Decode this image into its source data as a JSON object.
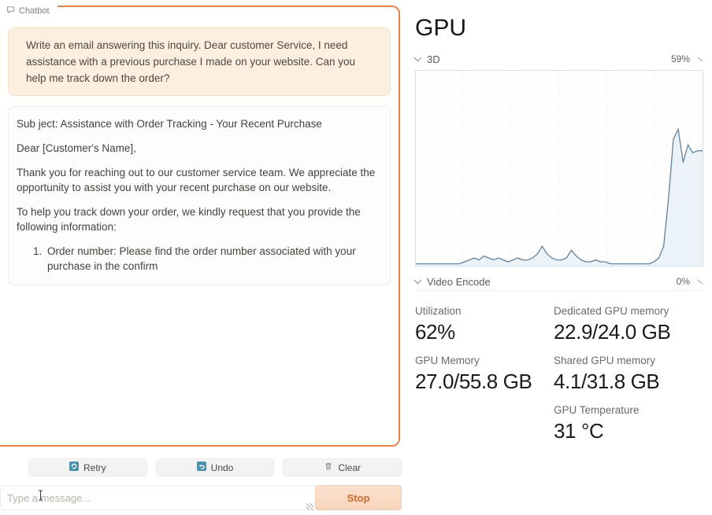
{
  "colors": {
    "accent_orange": "#e2824a",
    "action_icon_blue": "#4a90ad",
    "stop_bg": "#f8d5bd",
    "stop_text": "#d06a33",
    "chart_line": "#64829b",
    "chart_fill": "#dde9f4"
  },
  "chat": {
    "label": "Chatbot",
    "user_message": "Write an email answering this inquiry. Dear customer Service, I need assistance with a previous purchase I made on your website. Can you help me track down the order?",
    "bot_message": {
      "paragraphs": [
        "Sub ject: Assistance with Order Tracking - Your Recent Purchase",
        "Dear [Customer's Name],",
        "Thank you for reaching out to our customer service team. We appreciate the opportunity to assist you with your recent purchase on our website.",
        "To help you track down your order, we kindly request that you provide the following information:"
      ],
      "list_items": [
        "Order number: Please find the order number associated with your purchase in the confirm"
      ]
    },
    "actions": {
      "retry": "Retry",
      "undo": "Undo",
      "clear": "Clear"
    },
    "composer": {
      "placeholder": "Type a message...",
      "stop_label": "Stop"
    }
  },
  "gpu": {
    "title": "GPU",
    "sections": [
      {
        "name": "3D",
        "value": "59%"
      },
      {
        "name": "Video Encode",
        "value": "0%"
      }
    ],
    "stats": {
      "left": [
        {
          "label": "Utilization",
          "value": "62%"
        },
        {
          "label": "GPU Memory",
          "value": "27.0/55.8 GB"
        }
      ],
      "right": [
        {
          "label": "Dedicated GPU memory",
          "value": "22.9/24.0 GB"
        },
        {
          "label": "Shared GPU memory",
          "value": "4.1/31.8 GB"
        },
        {
          "label": "GPU Temperature",
          "value": "31 °C"
        }
      ]
    }
  },
  "icons": [
    "chat-bubble-icon",
    "chevron-down-icon",
    "collapse-chevron-icon",
    "retry-icon",
    "undo-icon",
    "trash-icon",
    "text-cursor-icon",
    "resize-handle-icon"
  ],
  "chart_data": {
    "type": "area",
    "title": "3D utilization (%)",
    "ylabel": "%",
    "ylim": [
      0,
      100
    ],
    "x_window_seconds": 60,
    "grid": "faint-vertical",
    "legend": "none",
    "values": [
      1,
      1,
      1,
      1,
      1,
      1,
      1,
      1,
      1,
      1,
      2,
      3,
      4,
      3,
      5,
      4,
      3,
      4,
      3,
      2,
      3,
      4,
      3,
      3,
      4,
      6,
      10,
      6,
      4,
      3,
      3,
      4,
      8,
      5,
      3,
      2,
      2,
      3,
      2,
      2,
      1,
      1,
      1,
      1,
      1,
      1,
      1,
      1,
      1,
      2,
      4,
      10,
      35,
      65,
      70,
      53,
      62,
      58,
      59,
      59
    ]
  }
}
